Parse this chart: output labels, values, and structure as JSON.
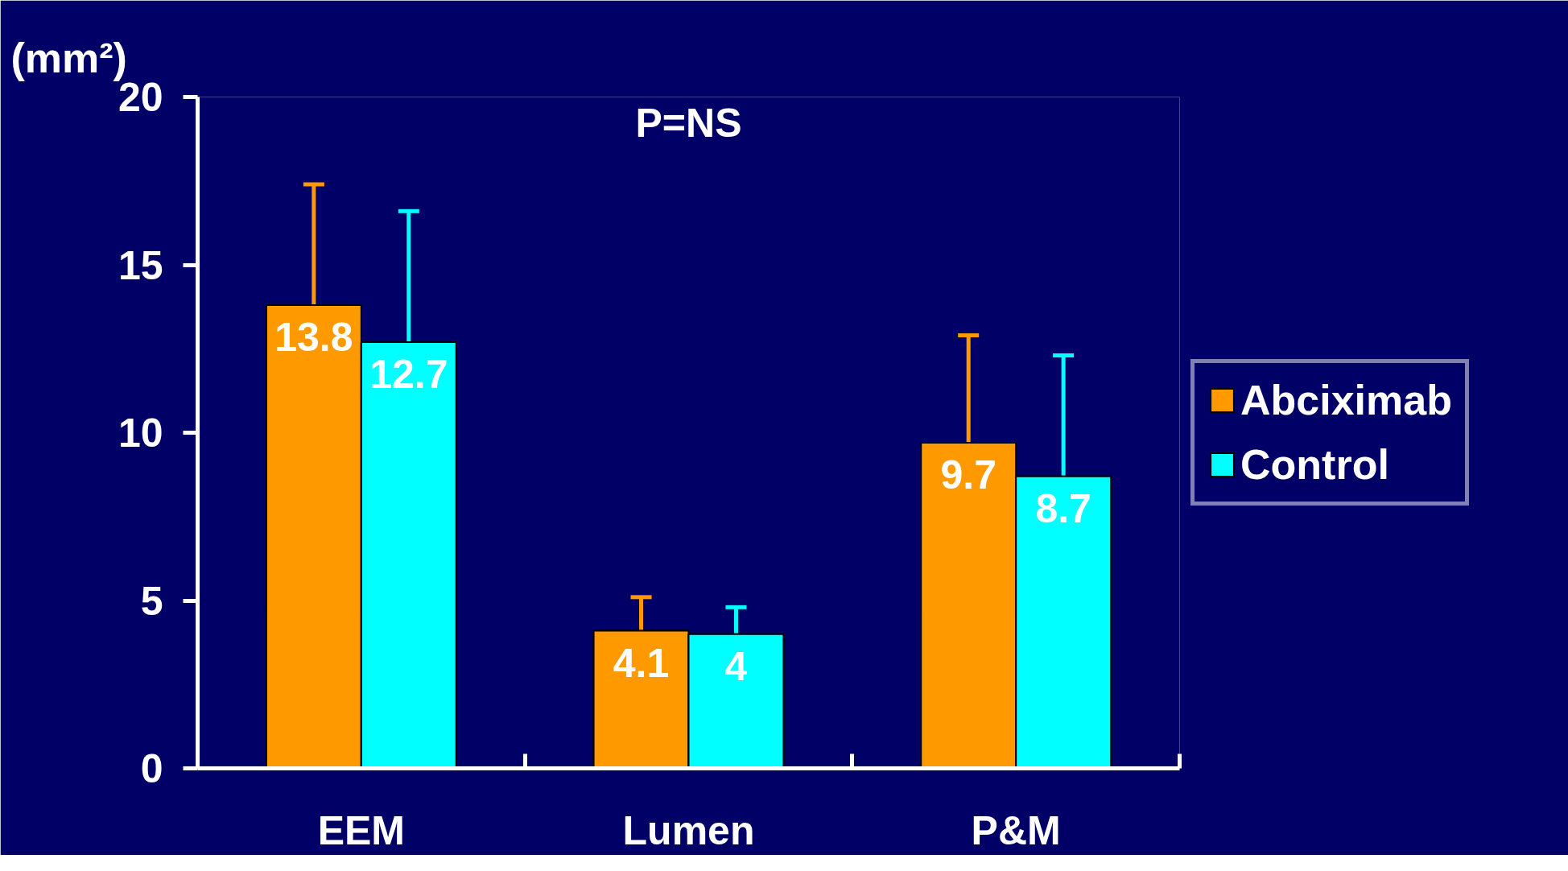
{
  "chart_data": {
    "type": "bar",
    "ylabel": "(mm²)",
    "annotations": [
      "P=NS"
    ],
    "categories": [
      "EEM",
      "Lumen",
      "P&M"
    ],
    "series": [
      {
        "name": "Abciximab",
        "color": "#ff9900",
        "values": [
          13.8,
          4.1,
          9.7
        ],
        "errors": [
          [
            13.8,
            17.4
          ],
          [
            4.1,
            5.1
          ],
          [
            9.7,
            12.9
          ]
        ]
      },
      {
        "name": "Control",
        "color": "#00ffff",
        "values": [
          12.7,
          4,
          8.7
        ],
        "errors": [
          [
            12.7,
            16.6
          ],
          [
            4,
            4.8
          ],
          [
            8.7,
            12.3
          ]
        ]
      }
    ],
    "ylim": [
      0,
      20
    ],
    "yticks": [
      0,
      5,
      10,
      15,
      20
    ],
    "data_labels": true,
    "grid": false,
    "legend": "right"
  }
}
